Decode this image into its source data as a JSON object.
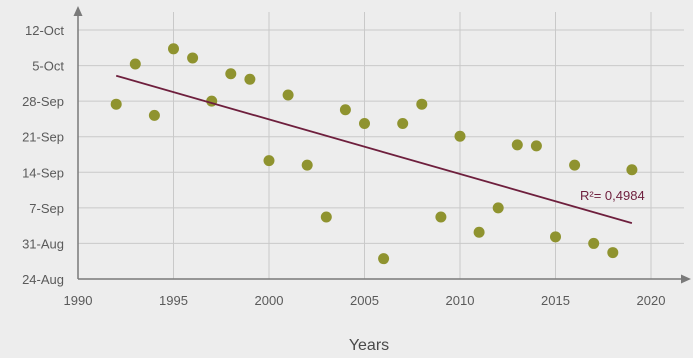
{
  "chart_data": {
    "type": "scatter",
    "title": "",
    "xlabel": "Years",
    "ylabel": "",
    "xlim": [
      1990,
      2022
    ],
    "ylim": [
      0,
      50
    ],
    "x_ticks": [
      1990,
      1995,
      2000,
      2005,
      2010,
      2015,
      2020
    ],
    "y_ticks": [
      {
        "value": 0,
        "label": "24-Aug"
      },
      {
        "value": 7,
        "label": "31-Aug"
      },
      {
        "value": 14,
        "label": "7-Sep"
      },
      {
        "value": 21,
        "label": "14-Sep"
      },
      {
        "value": 28,
        "label": "21-Sep"
      },
      {
        "value": 35,
        "label": "28-Sep"
      },
      {
        "value": 42,
        "label": "5-Oct"
      },
      {
        "value": 49,
        "label": "12-Oct"
      }
    ],
    "y_value_note_days_after": "24-Aug",
    "grid": true,
    "series": [
      {
        "points": [
          {
            "x": 1992,
            "y": 34.4
          },
          {
            "x": 1993,
            "y": 42.3
          },
          {
            "x": 1994,
            "y": 32.2
          },
          {
            "x": 1995,
            "y": 45.3
          },
          {
            "x": 1996,
            "y": 43.5
          },
          {
            "x": 1997,
            "y": 35.0
          },
          {
            "x": 1998,
            "y": 40.4
          },
          {
            "x": 1999,
            "y": 39.3
          },
          {
            "x": 2000,
            "y": 23.3
          },
          {
            "x": 2001,
            "y": 36.2
          },
          {
            "x": 2002,
            "y": 22.4
          },
          {
            "x": 2003,
            "y": 12.2
          },
          {
            "x": 2004,
            "y": 33.3
          },
          {
            "x": 2005,
            "y": 30.6
          },
          {
            "x": 2006,
            "y": 4.0
          },
          {
            "x": 2007,
            "y": 30.6
          },
          {
            "x": 2008,
            "y": 34.4
          },
          {
            "x": 2009,
            "y": 12.2
          },
          {
            "x": 2010,
            "y": 28.1
          },
          {
            "x": 2011,
            "y": 9.2
          },
          {
            "x": 2012,
            "y": 14.0
          },
          {
            "x": 2013,
            "y": 26.4
          },
          {
            "x": 2014,
            "y": 26.2
          },
          {
            "x": 2015,
            "y": 8.3
          },
          {
            "x": 2016,
            "y": 22.4
          },
          {
            "x": 2017,
            "y": 7.0
          },
          {
            "x": 2018,
            "y": 5.2
          },
          {
            "x": 2019,
            "y": 21.5
          }
        ]
      }
    ],
    "trendline": {
      "x": [
        1992,
        2019
      ],
      "y": [
        40.0,
        11.0
      ]
    },
    "annotation": "R²= 0,4984",
    "colors": {
      "points": "#8f932f",
      "trendline": "#6e1f3d",
      "grid": "#c9c9c9",
      "axis": "#7a7a7a"
    }
  }
}
